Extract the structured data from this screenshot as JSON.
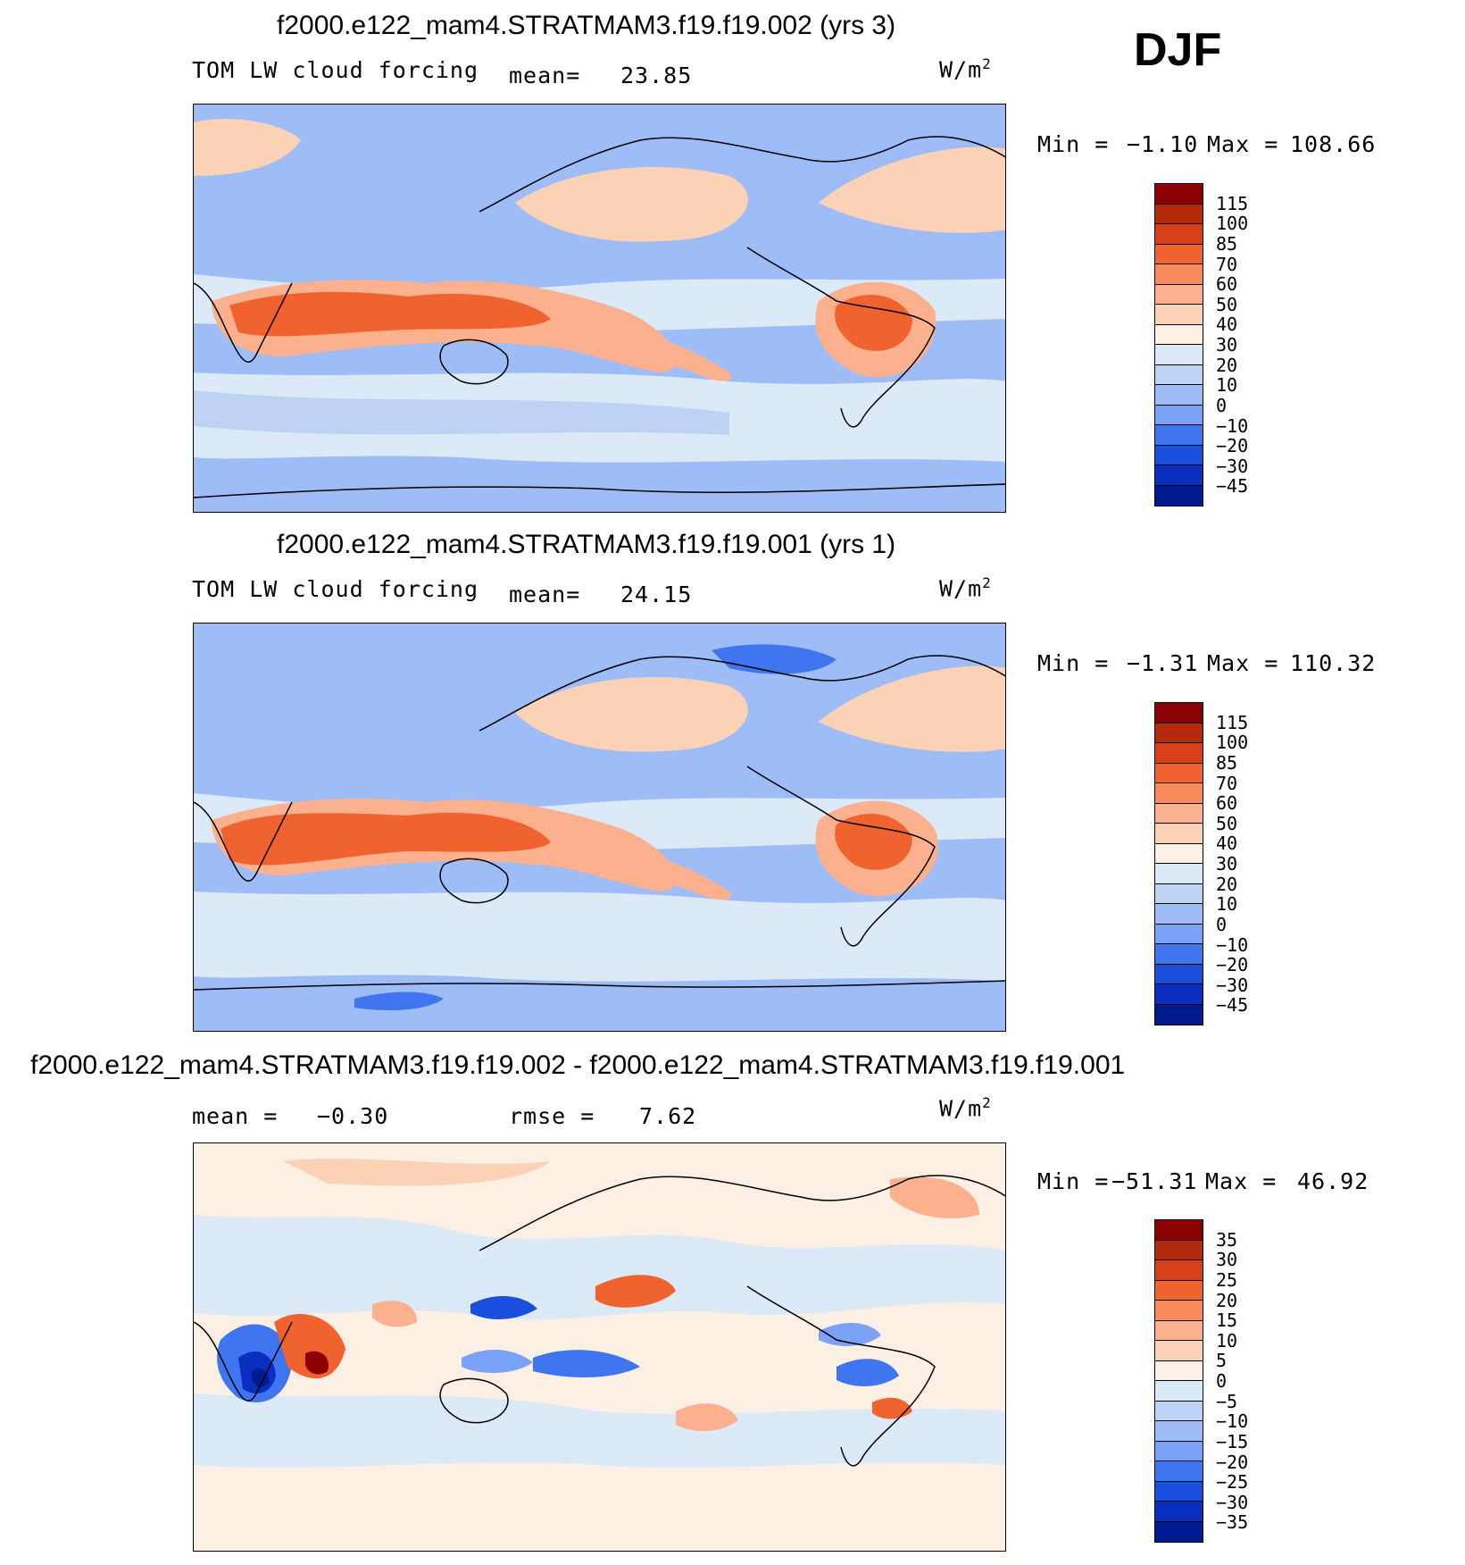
{
  "season": "DJF",
  "panels": [
    {
      "title": "f2000.e122_mam4.STRATMAM3.f19.f19.002 (yrs 3)",
      "variable": "TOM LW cloud forcing",
      "mean_label": "mean=",
      "mean_value": "23.85",
      "units": "W/m",
      "units_sup": "2",
      "min_label": "Min =",
      "min_value": "−1.10",
      "max_label": "Max =",
      "max_value": "108.66",
      "colorbar": {
        "labels": [
          "115",
          "100",
          "85",
          "70",
          "60",
          "50",
          "40",
          "30",
          "20",
          "10",
          "0",
          "−10",
          "−20",
          "−30",
          "−45"
        ],
        "colors": [
          "#8b0000",
          "#b52a0a",
          "#d8401a",
          "#f0632e",
          "#f98a5c",
          "#fbb08e",
          "#fcd2b7",
          "#fcefe4",
          "#dce9f7",
          "#bcd3f6",
          "#9ebcf6",
          "#7aa2f7",
          "#3f76f0",
          "#1a4fde",
          "#0a2fbf",
          "#001a8f"
        ]
      }
    },
    {
      "title": "f2000.e122_mam4.STRATMAM3.f19.f19.001 (yrs 1)",
      "variable": "TOM LW cloud forcing",
      "mean_label": "mean=",
      "mean_value": "24.15",
      "units": "W/m",
      "units_sup": "2",
      "min_label": "Min =",
      "min_value": "−1.31",
      "max_label": "Max =",
      "max_value": "110.32",
      "colorbar": {
        "labels": [
          "115",
          "100",
          "85",
          "70",
          "60",
          "50",
          "40",
          "30",
          "20",
          "10",
          "0",
          "−10",
          "−20",
          "−30",
          "−45"
        ],
        "colors": [
          "#8b0000",
          "#b52a0a",
          "#d8401a",
          "#f0632e",
          "#f98a5c",
          "#fbb08e",
          "#fcd2b7",
          "#fcefe4",
          "#dce9f7",
          "#bcd3f6",
          "#9ebcf6",
          "#7aa2f7",
          "#3f76f0",
          "#1a4fde",
          "#0a2fbf",
          "#001a8f"
        ]
      }
    },
    {
      "title": "f2000.e122_mam4.STRATMAM3.f19.f19.002 - f2000.e122_mam4.STRATMAM3.f19.f19.001",
      "mean_label": "mean =",
      "mean_value": "−0.30",
      "rmse_label": "rmse =",
      "rmse_value": "7.62",
      "units": "W/m",
      "units_sup": "2",
      "min_label": "Min =",
      "min_value": "−51.31",
      "max_label": "Max =",
      "max_value": "46.92",
      "colorbar": {
        "labels": [
          "35",
          "30",
          "25",
          "20",
          "15",
          "10",
          "5",
          "0",
          "−5",
          "−10",
          "−15",
          "−20",
          "−25",
          "−30",
          "−35"
        ],
        "colors": [
          "#8b0000",
          "#b52a0a",
          "#d8401a",
          "#f0632e",
          "#f98a5c",
          "#fbb08e",
          "#fcd2b7",
          "#fcefe4",
          "#dce9f7",
          "#bcd3f6",
          "#9ebcf6",
          "#7aa2f7",
          "#3f76f0",
          "#1a4fde",
          "#0a2fbf",
          "#001a8f"
        ]
      }
    }
  ]
}
